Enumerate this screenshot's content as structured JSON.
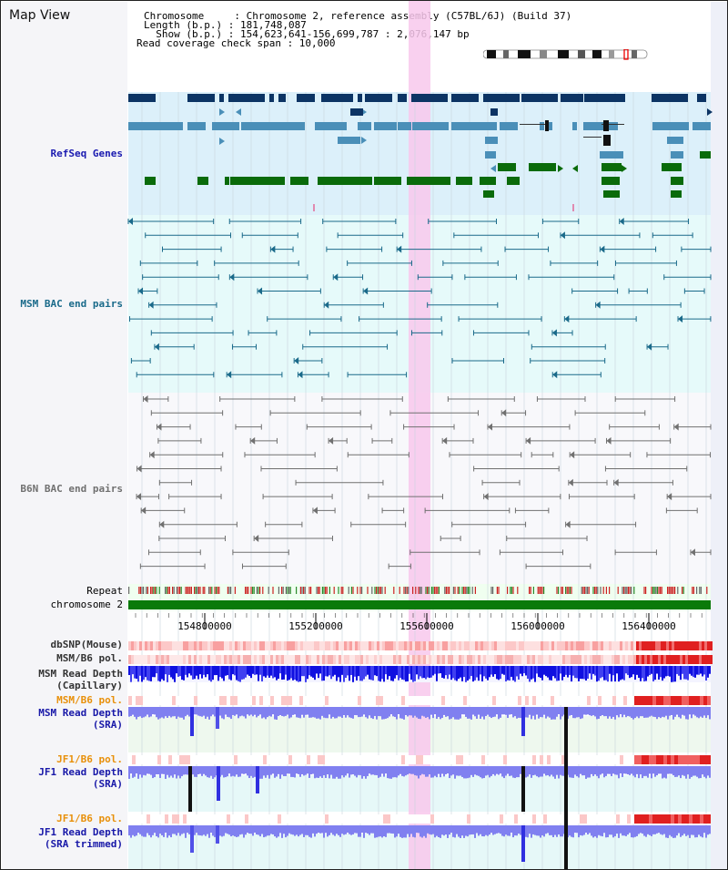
{
  "title": "Map View",
  "header": {
    "chromosome_line": "Chromosome     : Chromosome 2, reference assembly (C57BL/6J) (Build 37)",
    "length_line": "Length (b.p.) : 181,748,087",
    "show_line": "  Show (b.p.) : 154,623,641-156,699,787 : 2,076,147 bp",
    "coverage_line": "Read coverage check span : 10,000"
  },
  "tracks": {
    "refseq": "RefSeq Genes",
    "msm_bac": "MSM BAC end pairs",
    "b6n_bac": "B6N BAC end pairs",
    "repeat": "Repeat",
    "chromosome": "chromosome 2",
    "dbsnp": "dbSNP(Mouse)",
    "msm_b6_pol": "MSM/B6 pol.",
    "msm_read_depth_cap_1": "MSM Read Depth",
    "msm_read_depth_cap_2": "(Capillary)",
    "msm_b6_pol_2": "MSM/B6 pol.",
    "msm_read_depth_sra_1": "MSM Read Depth",
    "msm_read_depth_sra_2": "(SRA)",
    "jf1_b6_pol": "JF1/B6 pol.",
    "jf1_read_depth_1": "JF1 Read Depth",
    "jf1_read_depth_2": "(SRA)",
    "jf1_b6_pol_2": "JF1/B6 pol.",
    "jf1_read_depth_trim_1": "JF1 Read Depth",
    "jf1_read_depth_trim_2": "(SRA trimmed)"
  },
  "ruler": {
    "ticks": [
      "154800000",
      "155200000",
      "155600000",
      "156000000",
      "156400000"
    ]
  },
  "colors": {
    "refseq_dark": "#0c3464",
    "refseq_mid": "#4a8fb8",
    "refseq_green": "#0a6b0a",
    "msm_line": "#1a6a8a",
    "b6n_line": "#707070",
    "chromosome_bar": "#0a7a0a",
    "highlight": "#f8c8ec",
    "label_refseq": "#1a1ab0",
    "label_msm": "#1a6a8a",
    "label_b6n": "#707070",
    "label_orange": "#e8900a",
    "label_blue": "#1818a8"
  }
}
